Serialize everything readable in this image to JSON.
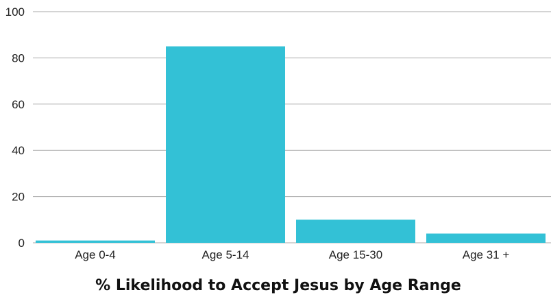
{
  "chart_data": {
    "type": "bar",
    "title": "% Likelihood to Accept Jesus by Age Range",
    "categories": [
      "Age 0-4",
      "Age 5-14",
      "Age 15-30",
      "Age 31 +"
    ],
    "values": [
      1,
      85,
      10,
      4
    ],
    "ylim": [
      0,
      100
    ],
    "yticks": [
      "0",
      "20",
      "40",
      "60",
      "80",
      "100"
    ],
    "grid": true,
    "legend": "none",
    "bar_color": "#33c1d6"
  }
}
